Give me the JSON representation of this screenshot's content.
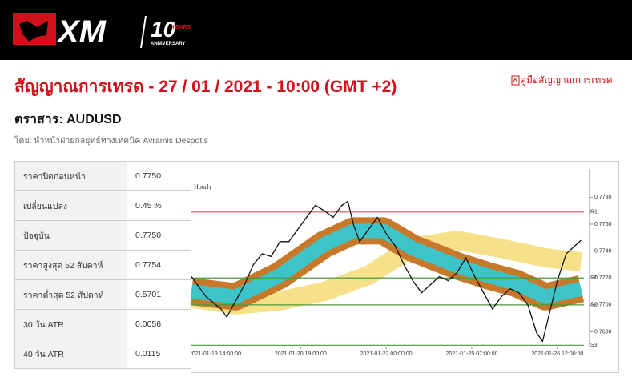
{
  "header": {
    "logo": "XM",
    "anniversary": "10",
    "years": "YEARS",
    "subtitle": "ANNIVERSARY"
  },
  "title": "สัญญาณการเทรด - 27 / 01 / 2021 - 10:00 (GMT +2)",
  "guide_link": "คู่มือสัญญาณการเทรด",
  "instrument": "ตราสาร: AUDUSD",
  "byline": "โดย: หัวหน้าฝ่ายกลยุทธ์ทางเทคนิค Avramis Despotis",
  "table": {
    "rows": [
      [
        "ราคาปิดก่อนหน้า",
        "0.7750"
      ],
      [
        "เปลี่ยนแปลง",
        "0.45 %"
      ],
      [
        "ปัจจุบัน",
        "0.7750"
      ],
      [
        "ราคาสูงสุด 52 สัปดาห์",
        "0.7754"
      ],
      [
        "ราคาต่ำสุด 52 สัปดาห์",
        "0.5701"
      ],
      [
        "30 วัน ATR",
        "0.0056"
      ],
      [
        "40 วัน ATR",
        "0.0115"
      ]
    ]
  },
  "chart_data": {
    "type": "line",
    "subtitle": "Hourly",
    "xlim": [
      0,
      133
    ],
    "xticks": [
      {
        "value": 8,
        "label": "2021-01-19 14:00:00"
      },
      {
        "value": 37,
        "label": "2021-01-20 19:00:00"
      },
      {
        "value": 66,
        "label": "2021-01-22 00:00:00"
      },
      {
        "value": 95,
        "label": "2021-01-25 07:00:00"
      },
      {
        "value": 124,
        "label": "2021-01-26 12:00:00"
      }
    ],
    "ylim": [
      0.7669,
      0.7801
    ],
    "yticks": [
      {
        "value": 0.768,
        "label": "0.7680"
      },
      {
        "value": 0.77,
        "label": "0.7700"
      },
      {
        "value": 0.772,
        "label": "0.7720"
      },
      {
        "value": 0.774,
        "label": "0.7740"
      },
      {
        "value": 0.776,
        "label": "0.7760"
      },
      {
        "value": 0.778,
        "label": "0.7780"
      }
    ],
    "levels": [
      {
        "name": "R1",
        "value": 0.7769,
        "color": "#d9534f"
      },
      {
        "name": "S1",
        "value": 0.772,
        "color": "#4a9a3a"
      },
      {
        "name": "S2",
        "value": 0.77,
        "color": "#4a9a3a"
      },
      {
        "name": "S3",
        "value": 0.767,
        "color": "#4a9a3a"
      }
    ],
    "bands": [
      {
        "color": "#f7e08a",
        "x": [
          0,
          15,
          30,
          45,
          60,
          75,
          90,
          105,
          120,
          132
        ],
        "values": [
          0.7705,
          0.77,
          0.7703,
          0.771,
          0.7722,
          0.7743,
          0.7748,
          0.7742,
          0.7735,
          0.7732
        ]
      },
      {
        "color": "#c8782a",
        "x": [
          0,
          15,
          30,
          45,
          55,
          65,
          75,
          90,
          100,
          110,
          120,
          132
        ],
        "values": [
          0.771,
          0.7706,
          0.7722,
          0.7745,
          0.7755,
          0.7755,
          0.7742,
          0.7729,
          0.7722,
          0.7716,
          0.7706,
          0.7712
        ]
      }
    ],
    "series": [
      {
        "color": "#111111",
        "x": [
          0,
          5,
          10,
          12,
          15,
          18,
          21,
          24,
          27,
          30,
          33,
          36,
          39,
          42,
          45,
          48,
          51,
          53,
          55,
          57,
          60,
          63,
          66,
          69,
          72,
          75,
          78,
          81,
          84,
          87,
          90,
          93,
          96,
          99,
          102,
          105,
          108,
          111,
          114,
          117,
          119,
          121,
          124,
          127,
          130,
          132
        ],
        "values": [
          0.7721,
          0.7706,
          0.7697,
          0.7691,
          0.7703,
          0.7715,
          0.773,
          0.7738,
          0.7736,
          0.7747,
          0.7747,
          0.7756,
          0.7765,
          0.7774,
          0.777,
          0.7765,
          0.7774,
          0.7777,
          0.7759,
          0.7747,
          0.7756,
          0.7765,
          0.7753,
          0.7744,
          0.773,
          0.7718,
          0.7709,
          0.7715,
          0.7721,
          0.7718,
          0.7724,
          0.7735,
          0.7721,
          0.7709,
          0.7697,
          0.7706,
          0.7712,
          0.7709,
          0.77,
          0.7679,
          0.7673,
          0.7691,
          0.7718,
          0.7738,
          0.7744,
          0.7748
        ]
      }
    ]
  }
}
